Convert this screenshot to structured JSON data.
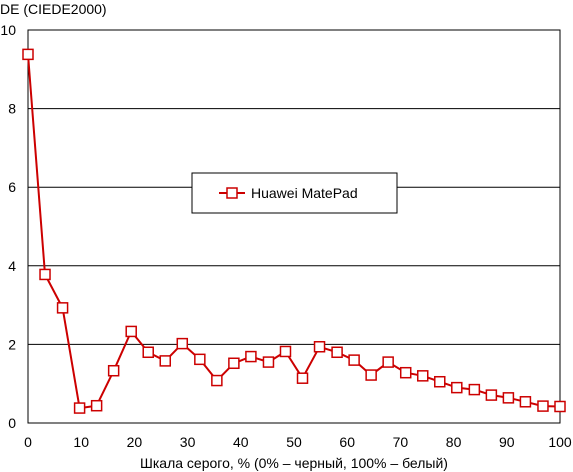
{
  "chart_data": {
    "type": "line",
    "title": "",
    "ylabel": "DE (CIEDE2000)",
    "xlabel": "Шкала серого, % (0% – черный, 100% – белый)",
    "xlim": [
      0,
      100
    ],
    "ylim": [
      0,
      10
    ],
    "x_ticks": [
      "0",
      "10",
      "20",
      "30",
      "40",
      "50",
      "60",
      "70",
      "80",
      "90",
      "100"
    ],
    "y_ticks": [
      "0",
      "2",
      "4",
      "6",
      "8",
      "10"
    ],
    "grid": "horizontal",
    "legend_position": "center",
    "series": [
      {
        "name": "Huawei MatePad",
        "color": "#cc0000",
        "marker": "square",
        "x": [
          0,
          3.2,
          6.5,
          9.7,
          12.9,
          16.1,
          19.4,
          22.6,
          25.8,
          29.0,
          32.3,
          35.5,
          38.7,
          41.9,
          45.2,
          48.4,
          51.6,
          54.8,
          58.1,
          61.3,
          64.5,
          67.7,
          71.0,
          74.2,
          77.4,
          80.6,
          83.9,
          87.1,
          90.3,
          93.5,
          96.8,
          100
        ],
        "y": [
          9.38,
          3.78,
          2.93,
          0.38,
          0.44,
          1.33,
          2.33,
          1.8,
          1.58,
          2.02,
          1.62,
          1.08,
          1.52,
          1.69,
          1.55,
          1.82,
          1.14,
          1.94,
          1.8,
          1.6,
          1.22,
          1.55,
          1.28,
          1.2,
          1.05,
          0.9,
          0.85,
          0.71,
          0.64,
          0.54,
          0.43,
          0.42
        ]
      }
    ]
  }
}
